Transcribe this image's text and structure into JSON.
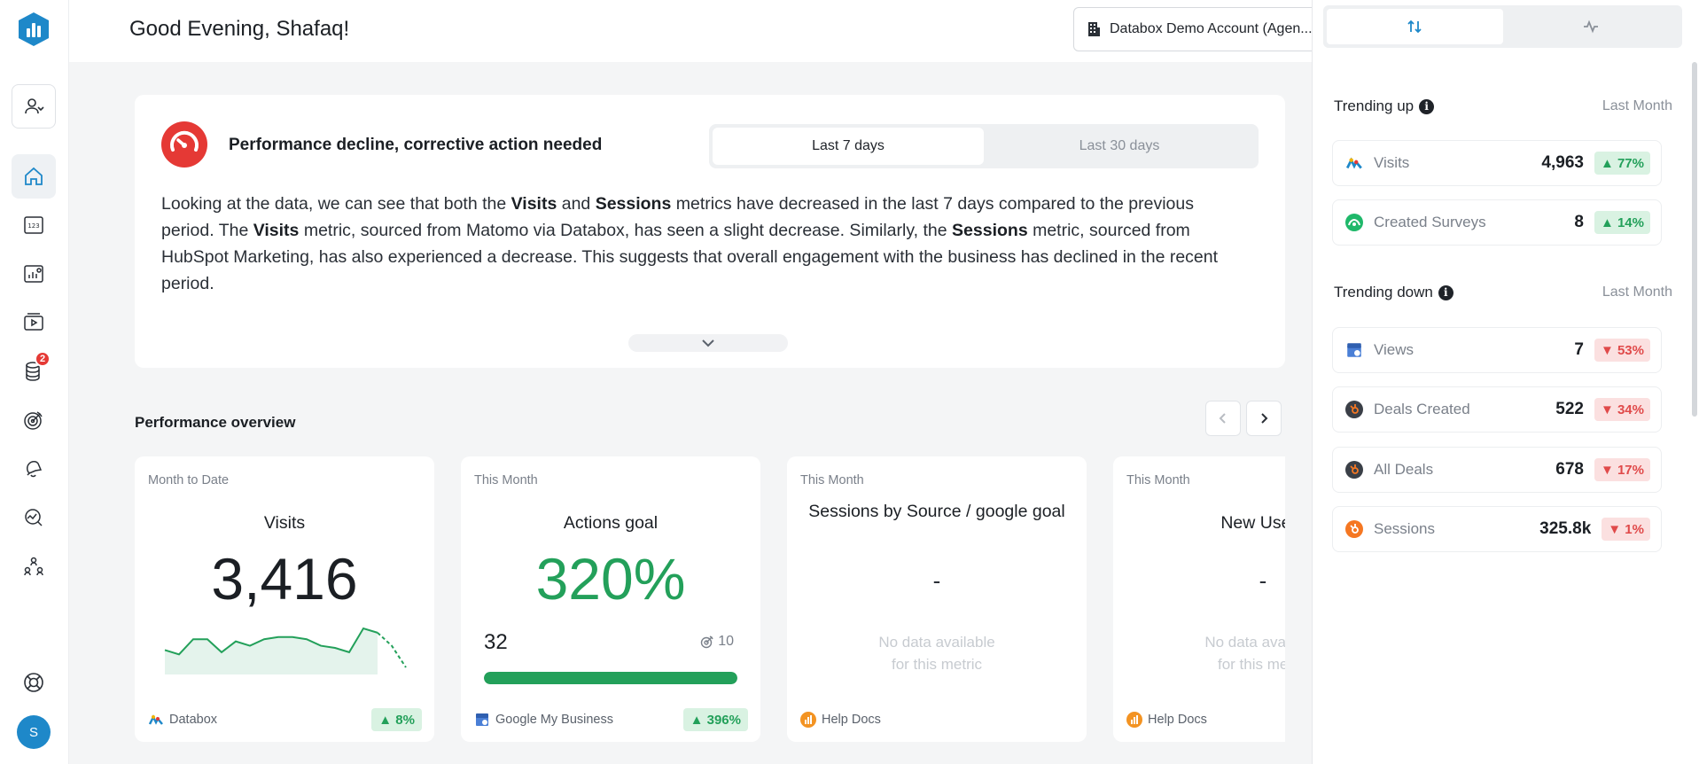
{
  "header": {
    "greeting": "Good Evening, Shafaq!",
    "account": "Databox Demo Account (Agen..."
  },
  "sidebar": {
    "items": [
      "user-manage-icon",
      "home-icon",
      "metrics-123-icon",
      "reports-icon",
      "video-icon",
      "database-icon",
      "goals-icon",
      "alerts-icon",
      "benchmark-icon",
      "team-icon"
    ],
    "badge_count": "2",
    "avatar_initial": "S"
  },
  "insight": {
    "title": "Performance decline, corrective action needed",
    "tabs": [
      "Last 7 days",
      "Last 30 days"
    ],
    "selected_tab": "Last 7 days",
    "text": {
      "p1": "Looking at the data, we can see that both the ",
      "b1": "Visits",
      "p2": " and ",
      "b2": "Sessions",
      "p3": " metrics have decreased in the last 7 days compared to the previous period. The ",
      "b3": "Visits",
      "p4": " metric, sourced from Matomo via Databox, has seen a slight decrease. Similarly, the ",
      "b4": "Sessions",
      "p5": " metric, sourced from HubSpot Marketing, has also experienced a decrease. This suggests that overall engagement with the business has declined in the recent period."
    }
  },
  "overview": {
    "title": "Performance overview",
    "cards": [
      {
        "period": "Month to Date",
        "name": "Visits",
        "value": "3,416",
        "source": "Databox",
        "change": "▲ 8%",
        "trend": "up",
        "sparkline": [
          62,
          64,
          57,
          57,
          63,
          58,
          60,
          57,
          56,
          56,
          57,
          60,
          61,
          63,
          52,
          54,
          60,
          70
        ]
      },
      {
        "period": "This Month",
        "name": "Actions goal",
        "value": "320%",
        "current": "32",
        "goal": "10",
        "progress": 1.0,
        "source": "Google My Business",
        "change": "▲ 396%",
        "trend": "up"
      },
      {
        "period": "This Month",
        "name": "Sessions by Source / google goal",
        "value": "-",
        "nodata": [
          "No data available",
          "for this metric"
        ],
        "source": "Help Docs"
      },
      {
        "period": "This Month",
        "name": "New Users",
        "value": "-",
        "nodata": [
          "No data available",
          "for this metric"
        ],
        "source": "Help Docs"
      }
    ]
  },
  "right_panel": {
    "trending_up": {
      "title": "Trending up",
      "period": "Last Month",
      "items": [
        {
          "name": "Visits",
          "value": "4,963",
          "change": "▲ 77%",
          "icon": "databox-icon"
        },
        {
          "name": "Created Surveys",
          "value": "8",
          "change": "▲ 14%",
          "icon": "surveymonkey-icon"
        }
      ]
    },
    "trending_down": {
      "title": "Trending down",
      "period": "Last Month",
      "items": [
        {
          "name": "Views",
          "value": "7",
          "change": "▼ 53%",
          "icon": "google-my-business-icon"
        },
        {
          "name": "Deals Created",
          "value": "522",
          "change": "▼ 34%",
          "icon": "hubspot-dark-icon"
        },
        {
          "name": "All Deals",
          "value": "678",
          "change": "▼ 17%",
          "icon": "hubspot-dark-icon"
        },
        {
          "name": "Sessions",
          "value": "325.8k",
          "change": "▼ 1%",
          "icon": "hubspot-orange-icon"
        }
      ]
    }
  },
  "colors": {
    "accent": "#1e88c9",
    "positive": "#23a05a",
    "negative": "#e04a4a",
    "alert": "#e53935"
  }
}
